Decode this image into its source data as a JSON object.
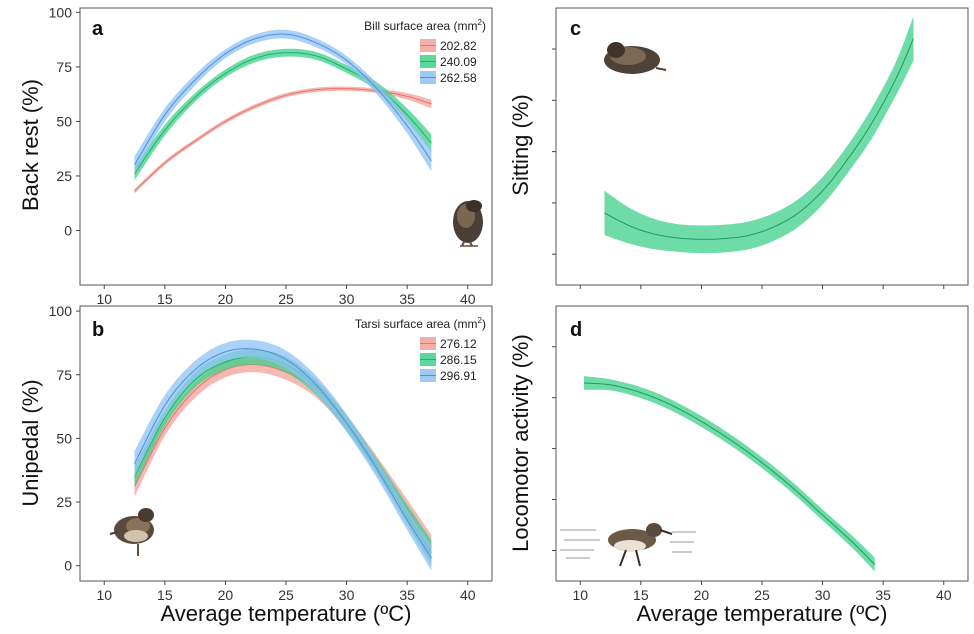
{
  "figure": {
    "xlabel": "Average temperature (ºC)"
  },
  "chart_data": [
    {
      "panel": "a",
      "type": "line",
      "ylabel": "Back rest (%)",
      "xlim": [
        8,
        42
      ],
      "ylim": [
        -25,
        102
      ],
      "xticks": [
        "10",
        "15",
        "20",
        "25",
        "30",
        "35",
        "40"
      ],
      "yticks": [
        "0",
        "25",
        "50",
        "75",
        "100"
      ],
      "legend_title": "Bill surface area (mm",
      "legend_title_sup": "2",
      "legend_title_end": ")",
      "legend_position": "top-right",
      "series": [
        {
          "name": "202.82",
          "color": "#f4a09a",
          "line": "#e8716a",
          "x": [
            12.5,
            15,
            17.5,
            20,
            22.5,
            25,
            27.5,
            30,
            32.5,
            35,
            37
          ],
          "y": [
            18,
            31,
            41,
            50,
            57,
            62,
            64.5,
            65,
            64,
            61.5,
            58
          ],
          "band": [
            1,
            1,
            1,
            1,
            1,
            1,
            1,
            1,
            1,
            1.5,
            2
          ]
        },
        {
          "name": "240.09",
          "color": "#3fd08a",
          "line": "#20b06e",
          "x": [
            12.5,
            15,
            17.5,
            20,
            22.5,
            25,
            27.5,
            30,
            32.5,
            35,
            37
          ],
          "y": [
            26,
            46,
            61,
            72,
            79,
            81.5,
            80,
            74,
            66,
            53,
            40
          ],
          "band": [
            3,
            2.5,
            2,
            1.8,
            1.8,
            1.8,
            1.8,
            1.8,
            2,
            3,
            4
          ]
        },
        {
          "name": "262.58",
          "color": "#8ec1f4",
          "line": "#4f8fd8",
          "x": [
            12.5,
            15,
            17.5,
            20,
            22.5,
            25,
            27.5,
            30,
            32.5,
            35,
            37
          ],
          "y": [
            30,
            53,
            69,
            81,
            88,
            90,
            86,
            78,
            65,
            48,
            32
          ],
          "band": [
            4,
            3,
            2.5,
            2,
            2,
            2,
            2,
            2,
            2.5,
            3.5,
            5
          ]
        }
      ]
    },
    {
      "panel": "b",
      "type": "line",
      "ylabel": "Unipedal (%)",
      "xlim": [
        8,
        42
      ],
      "ylim": [
        -6,
        102
      ],
      "xticks": [
        "10",
        "15",
        "20",
        "25",
        "30",
        "35",
        "40"
      ],
      "yticks": [
        "0",
        "25",
        "50",
        "75",
        "100"
      ],
      "legend_title": "Tarsi surface area (mm",
      "legend_title_sup": "2",
      "legend_title_end": ")",
      "legend_position": "top-right",
      "series": [
        {
          "name": "276.12",
          "color": "#f4a09a",
          "line": "#e8716a",
          "x": [
            12.5,
            15,
            17.5,
            20,
            22.5,
            25,
            27.5,
            30,
            32.5,
            35,
            37
          ],
          "y": [
            31,
            54,
            69,
            77,
            79,
            76,
            69,
            56,
            40,
            22,
            7
          ],
          "band": [
            4,
            3,
            3,
            3,
            3,
            3,
            3,
            3,
            3,
            4,
            5
          ]
        },
        {
          "name": "286.15",
          "color": "#3fd08a",
          "line": "#20b06e",
          "x": [
            12.5,
            15,
            17.5,
            20,
            22.5,
            25,
            27.5,
            30,
            32.5,
            35,
            37
          ],
          "y": [
            35,
            58,
            73,
            80,
            82,
            79,
            70,
            56,
            39,
            20,
            5
          ],
          "band": [
            4,
            3,
            3,
            3,
            3,
            3,
            3,
            3,
            3,
            4,
            5
          ]
        },
        {
          "name": "296.91",
          "color": "#8ec1f4",
          "line": "#4f8fd8",
          "x": [
            12.5,
            15,
            17.5,
            20,
            22.5,
            25,
            27.5,
            30,
            32.5,
            35,
            37
          ],
          "y": [
            40,
            63,
            77,
            84,
            85,
            81,
            71,
            56,
            38,
            18,
            3
          ],
          "band": [
            5,
            4,
            3.5,
            3.5,
            3.5,
            3.5,
            3.5,
            3.5,
            3.5,
            4,
            5
          ]
        }
      ]
    },
    {
      "panel": "c",
      "type": "line",
      "ylabel": "Sitting (%)",
      "xlim": [
        8,
        42
      ],
      "ylim": [
        0,
        100
      ],
      "xticks": [],
      "yticks": [],
      "series": [
        {
          "name": "",
          "color": "#3fd08a",
          "line": "#1e9a5e",
          "x": [
            12,
            14,
            16,
            18,
            20,
            22,
            24,
            26,
            28,
            30,
            32,
            34,
            36,
            37.5
          ],
          "y": [
            26,
            21.5,
            18.5,
            17,
            16.5,
            16.8,
            18,
            21,
            26,
            34,
            45,
            58,
            74,
            89
          ],
          "band": [
            8,
            6.5,
            5.5,
            5,
            5,
            5,
            5,
            5,
            5,
            5,
            5,
            5.5,
            6,
            8
          ]
        }
      ]
    },
    {
      "panel": "d",
      "type": "line",
      "ylabel": "Locomotor activity (%)",
      "xlim": [
        8,
        42
      ],
      "ylim": [
        0,
        100
      ],
      "xticks": [
        "10",
        "15",
        "20",
        "25",
        "30",
        "35",
        "40"
      ],
      "yticks": [],
      "series": [
        {
          "name": "",
          "color": "#3fd08a",
          "line": "#1e9a5e",
          "x": [
            10.3,
            12.5,
            15,
            17.5,
            20,
            22.5,
            25,
            27.5,
            30,
            32.5,
            34.3
          ],
          "y": [
            72,
            71.3,
            68.5,
            64,
            58,
            51,
            43,
            34,
            24,
            14,
            6
          ],
          "band": [
            2.5,
            2,
            2,
            2,
            2,
            2,
            2,
            2,
            2,
            2.2,
            2.5
          ]
        }
      ]
    }
  ]
}
